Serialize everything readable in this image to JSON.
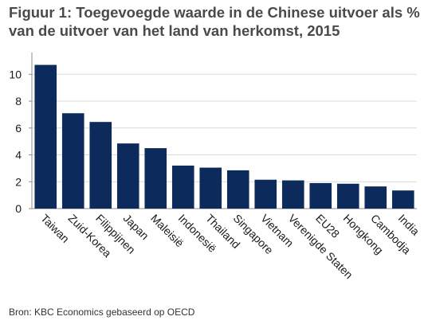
{
  "chart_data": {
    "type": "bar",
    "title": "Figuur 1: Toegevoegde waarde in de Chinese uitvoer als % van de uitvoer van het land van herkomst, 2015",
    "xlabel": "",
    "ylabel": "",
    "categories": [
      "Taiwan",
      "Zuid-Korea",
      "Filippijnen",
      "Japan",
      "Maleisië",
      "Indonesië",
      "Thailand",
      "Singapore",
      "Vietnam",
      "Verenigde Staten",
      "EU28",
      "Hongkong",
      "Cambodja",
      "India"
    ],
    "values": [
      10.7,
      7.1,
      6.45,
      4.85,
      4.5,
      3.2,
      3.05,
      2.85,
      2.15,
      2.1,
      1.9,
      1.85,
      1.65,
      1.35
    ],
    "yticks": [
      "0",
      "2",
      "4",
      "6",
      "8",
      "10"
    ],
    "ylim": [
      0,
      11.5
    ],
    "grid": true,
    "legend": "none",
    "bar_color": "#0c2a5b",
    "grid_color": "#d9d9d9",
    "source": "Bron: KBC Economics gebaseerd op OECD"
  }
}
